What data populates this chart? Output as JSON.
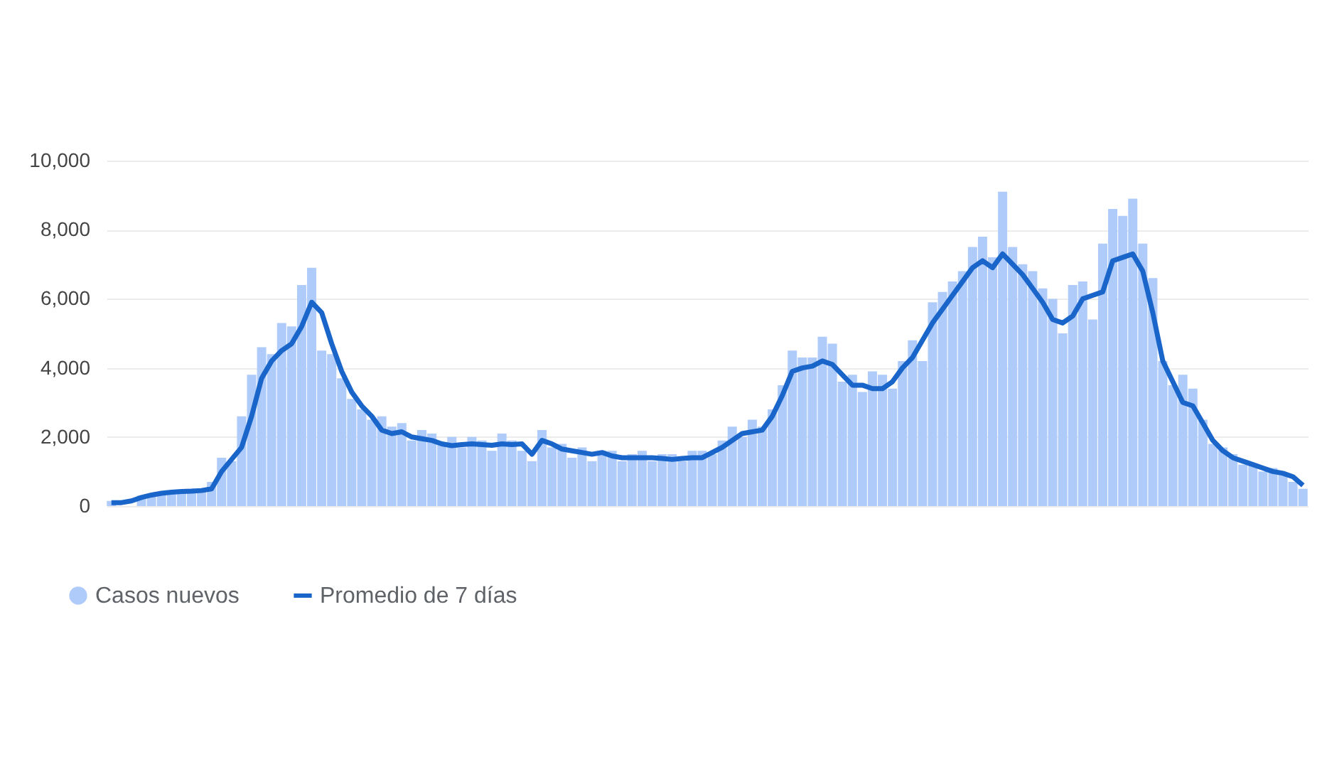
{
  "chart_data": {
    "type": "bar",
    "categories": [
      null,
      null,
      null,
      null,
      null,
      null,
      null,
      null,
      null,
      null,
      null,
      null,
      null,
      null,
      null,
      null,
      null,
      null,
      null,
      null,
      null,
      null,
      null,
      null,
      null,
      null,
      null,
      null,
      null,
      null,
      null,
      null,
      null,
      null,
      null,
      null,
      null,
      null,
      null,
      null,
      null,
      null,
      null,
      null,
      null,
      null,
      null,
      null,
      null,
      null,
      null,
      null,
      null,
      null,
      null,
      null,
      null,
      null,
      null,
      null,
      null,
      null,
      null,
      null,
      null,
      null,
      null,
      null,
      null,
      null,
      null,
      null,
      null,
      null,
      null,
      null,
      null,
      null,
      null,
      null,
      null,
      null,
      null,
      null,
      null,
      null,
      null,
      null,
      null,
      null,
      null,
      null,
      null,
      null,
      null,
      null,
      null,
      null,
      null,
      null,
      null,
      null,
      null,
      null,
      null,
      null,
      null,
      null,
      null,
      null,
      null,
      null,
      null,
      null,
      null,
      null,
      null,
      null,
      null,
      null
    ],
    "series": [
      {
        "name": "Casos nuevos",
        "color": "#aecbfa",
        "values": [
          150,
          null,
          null,
          300,
          350,
          400,
          450,
          400,
          500,
          480,
          700,
          1400,
          1300,
          2600,
          3800,
          4600,
          4400,
          5300,
          5200,
          6400,
          6900,
          4500,
          4400,
          3700,
          3100,
          2800,
          2500,
          2600,
          2300,
          2400,
          1900,
          2200,
          2100,
          1800,
          2000,
          1700,
          2000,
          1900,
          1600,
          2100,
          1900,
          1600,
          1300,
          2200,
          1700,
          1800,
          1400,
          1700,
          1300,
          1600,
          1600,
          1300,
          1500,
          1600,
          1300,
          1500,
          1500,
          1300,
          1600,
          1600,
          1500,
          1900,
          2300,
          2000,
          2500,
          2300,
          2800,
          3500,
          4500,
          4300,
          4300,
          4900,
          4700,
          3600,
          3800,
          3300,
          3900,
          3800,
          3400,
          4200,
          4800,
          4200,
          5900,
          6200,
          6500,
          6800,
          7500,
          7800,
          7200,
          9100,
          7500,
          7000,
          6800,
          6300,
          6000,
          5000,
          6400,
          6500,
          5400,
          7600,
          8600,
          8400,
          8900,
          7600,
          6600,
          4200,
          3500,
          3800,
          3400,
          2500,
          1800,
          1700,
          1500,
          1200,
          1200,
          1000,
          1100,
          900,
          700,
          500
        ]
      },
      {
        "name": "Promedio de 7 días",
        "type": "line",
        "color": "#1a65c9",
        "values": [
          100,
          100,
          150,
          250,
          320,
          370,
          400,
          420,
          430,
          450,
          500,
          1000,
          1350,
          1700,
          2600,
          3700,
          4200,
          4500,
          4700,
          5200,
          5900,
          5600,
          4700,
          3900,
          3300,
          2900,
          2600,
          2200,
          2100,
          2150,
          2000,
          1950,
          1900,
          1800,
          1750,
          1780,
          1800,
          1780,
          1760,
          1800,
          1780,
          1800,
          1500,
          1900,
          1800,
          1650,
          1600,
          1550,
          1500,
          1550,
          1450,
          1400,
          1400,
          1400,
          1400,
          1380,
          1350,
          1380,
          1400,
          1400,
          1550,
          1700,
          1900,
          2100,
          2150,
          2200,
          2600,
          3200,
          3900,
          4000,
          4050,
          4200,
          4100,
          3800,
          3500,
          3500,
          3400,
          3400,
          3600,
          4000,
          4300,
          4800,
          5300,
          5700,
          6100,
          6500,
          6900,
          7100,
          6900,
          7300,
          7000,
          6700,
          6300,
          5900,
          5400,
          5300,
          5500,
          6000,
          6100,
          6200,
          7100,
          7200,
          7300,
          6800,
          5600,
          4200,
          3600,
          3000,
          2900,
          2400,
          1900,
          1600,
          1400,
          1300,
          1200,
          1100,
          1000,
          950,
          850,
          600
        ]
      }
    ],
    "ylim": [
      0,
      10000
    ],
    "yticks": [
      0,
      {
        "value": 2000,
        "label": "2,000"
      },
      {
        "value": 4000,
        "label": "4,000"
      },
      {
        "value": 6000,
        "label": "6,000"
      },
      {
        "value": 8000,
        "label": "8,000"
      },
      {
        "value": 10000,
        "label": "10,000"
      }
    ],
    "grid": "y",
    "legend": "bottom left",
    "tick_labels": "y"
  }
}
